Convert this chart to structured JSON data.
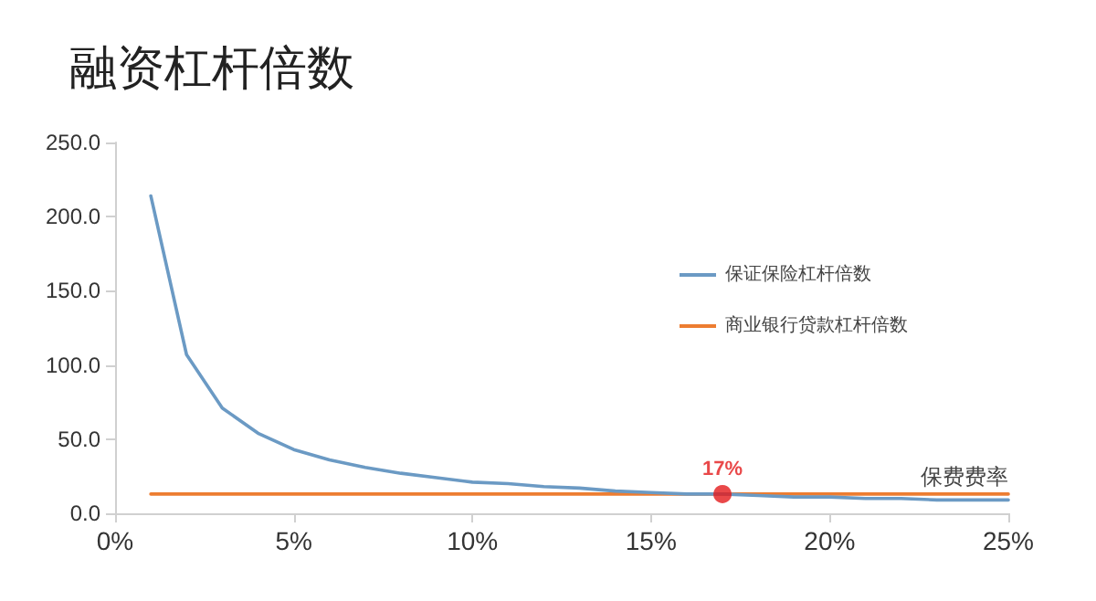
{
  "chart_data": {
    "type": "line",
    "title": "融资杠杆倍数",
    "xlabel": "保费费率",
    "xlim": [
      0,
      25
    ],
    "xticks": [
      {
        "value": 0,
        "label": "0%"
      },
      {
        "value": 5,
        "label": "5%"
      },
      {
        "value": 10,
        "label": "10%"
      },
      {
        "value": 15,
        "label": "15%"
      },
      {
        "value": 20,
        "label": "20%"
      },
      {
        "value": 25,
        "label": "25%"
      }
    ],
    "ylim": [
      0,
      250
    ],
    "yticks": [
      {
        "value": 0,
        "label": "0.0"
      },
      {
        "value": 50,
        "label": "50.0"
      },
      {
        "value": 100,
        "label": "100.0"
      },
      {
        "value": 150,
        "label": "150.0"
      },
      {
        "value": 200,
        "label": "200.0"
      },
      {
        "value": 250,
        "label": "250.0"
      }
    ],
    "series": [
      {
        "name": "保证保险杠杆倍数",
        "color": "#6b9ac4",
        "x": [
          1,
          2,
          3,
          4,
          5,
          6,
          7,
          8,
          9,
          10,
          11,
          12,
          13,
          14,
          15,
          16,
          17,
          18,
          19,
          20,
          21,
          22,
          23,
          24,
          25
        ],
        "values": [
          214,
          107,
          71,
          54,
          43,
          36,
          31,
          27,
          24,
          21,
          20,
          18,
          17,
          15,
          14,
          13,
          13,
          12,
          11,
          11,
          10,
          10,
          9,
          9,
          9
        ]
      },
      {
        "name": "商业银行贷款杠杆倍数",
        "color": "#ed7d31",
        "x": [
          1,
          25
        ],
        "values": [
          13,
          13
        ]
      },
      {
        "type": "scatter",
        "color": "#e31a1c",
        "marker": "circle",
        "x": [
          17
        ],
        "values": [
          13
        ]
      }
    ],
    "annotations": [
      {
        "text": "17%",
        "x": 17,
        "y": 13
      }
    ],
    "grid": false,
    "legend": "right"
  }
}
